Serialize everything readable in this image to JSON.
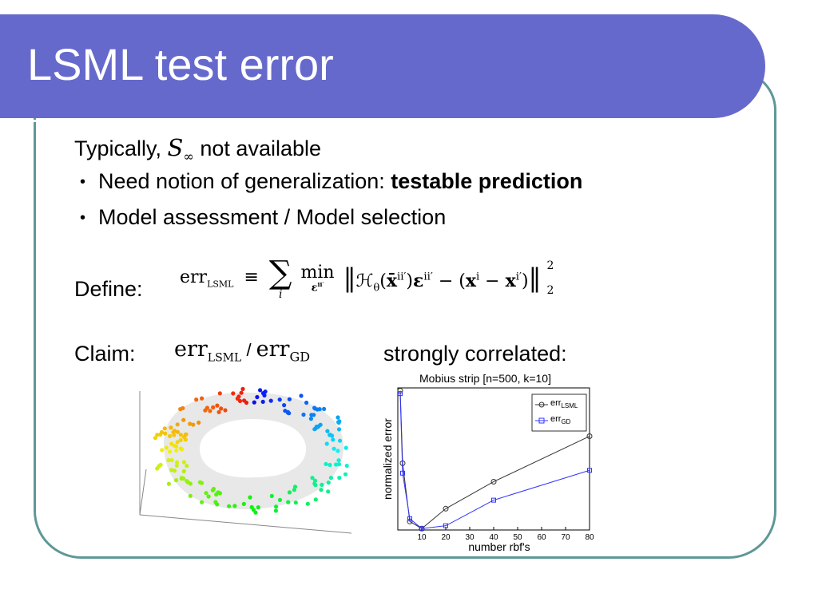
{
  "slide": {
    "title": "LSML test error",
    "intro_prefix": "Typically, ",
    "intro_math": "S",
    "intro_math_sub": "∞",
    "intro_suffix": " not available",
    "bullets": [
      {
        "text": "Need notion of generalization: ",
        "bold": "testable prediction"
      },
      {
        "text": "Model assessment / Model selection"
      }
    ],
    "define_label": "Define:",
    "define_formula": {
      "lhs": "err",
      "lhs_sub": "LSML",
      "equiv": "≡",
      "sum": "∑",
      "sum_sub": "i",
      "min": "min",
      "min_sub": "ε",
      "min_sub_sup": "ii′",
      "body_open": "‖",
      "H": "ℋ",
      "H_sub": "θ",
      "x_bar": "x̄",
      "x_bar_sup": "ii′",
      "eps": "ε",
      "eps_sup": "ii′",
      "minus1": " − (",
      "x": "x",
      "x_sup": "i",
      "minus2": " − ",
      "x2": "x",
      "x2_sup": "i′",
      "close_paren": ")",
      "body_close": "‖",
      "norm_sup": "2",
      "norm_sub": "2"
    },
    "claim_label": "Claim:",
    "claim_math1": "err",
    "claim_math1_sub": "LSML",
    "claim_sep": " / ",
    "claim_math2": "err",
    "claim_math2_sub": "GD",
    "claim_suffix": "strongly correlated:"
  },
  "colors": {
    "header": "#6669cc",
    "frame": "#5f9797",
    "series_lsml": "#333333",
    "series_gd": "#3333ff"
  },
  "chart_data": {
    "type": "line",
    "title": "Mobius strip [n=500, k=10]",
    "xlabel": "number rbf's",
    "ylabel": "normalized error",
    "xlim": [
      0,
      80
    ],
    "ylim": [
      0,
      1
    ],
    "xticks": [
      10,
      20,
      30,
      40,
      50,
      60,
      70,
      80
    ],
    "legend_position": "top-right",
    "series": [
      {
        "name": "err",
        "name_sub": "LSML",
        "x": [
          1,
          2,
          5,
          10,
          20,
          40,
          80
        ],
        "y": [
          0.98,
          0.47,
          0.06,
          0.01,
          0.15,
          0.34,
          0.66
        ]
      },
      {
        "name": "err",
        "name_sub": "GD",
        "x": [
          1,
          2,
          5,
          10,
          20,
          40,
          80
        ],
        "y": [
          0.96,
          0.4,
          0.08,
          0.01,
          0.03,
          0.21,
          0.42
        ]
      }
    ]
  }
}
